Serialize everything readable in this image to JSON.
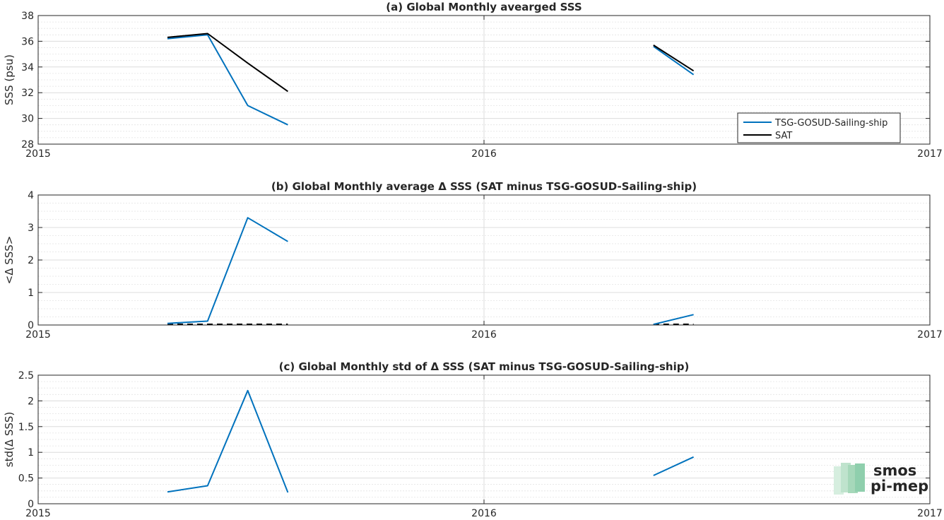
{
  "chart_data": [
    {
      "type": "line",
      "title": "(a) Global Monthly avearged SSS",
      "ylabel": "SSS (psu)",
      "xlim": [
        2015,
        2017
      ],
      "ylim": [
        28,
        38
      ],
      "xticks": [
        "2015",
        "2016",
        "2017"
      ],
      "yticks": [
        "28",
        "30",
        "32",
        "34",
        "36",
        "38"
      ],
      "grid": true,
      "legend_position": "bottom-right",
      "series": [
        {
          "name": "TSG-GOSUD-Sailing-ship",
          "color": "#0072bd",
          "segments": [
            {
              "x": [
                2015.29,
                2015.38,
                2015.47,
                2015.56
              ],
              "y": [
                36.2,
                36.5,
                31.0,
                29.5
              ]
            },
            {
              "x": [
                2016.38,
                2016.47
              ],
              "y": [
                35.6,
                33.4
              ]
            }
          ]
        },
        {
          "name": "SAT",
          "color": "#000000",
          "segments": [
            {
              "x": [
                2015.29,
                2015.38,
                2015.47,
                2015.56
              ],
              "y": [
                36.3,
                36.6,
                34.3,
                32.1
              ]
            },
            {
              "x": [
                2016.38,
                2016.47
              ],
              "y": [
                35.7,
                33.7
              ]
            }
          ]
        }
      ]
    },
    {
      "type": "line",
      "title": "(b) Global Monthly average Δ SSS (SAT minus TSG-GOSUD-Sailing-ship)",
      "ylabel": "<Δ SSS>",
      "xlim": [
        2015,
        2017
      ],
      "ylim": [
        0,
        4
      ],
      "xticks": [
        "2015",
        "2016",
        "2017"
      ],
      "yticks": [
        "0",
        "1",
        "2",
        "3",
        "4"
      ],
      "grid": true,
      "series": [
        {
          "color": "#0072bd",
          "segments": [
            {
              "x": [
                2015.29,
                2015.38,
                2015.47,
                2015.56
              ],
              "y": [
                0.05,
                0.12,
                3.3,
                2.57
              ]
            },
            {
              "x": [
                2016.38,
                2016.47
              ],
              "y": [
                0.02,
                0.32
              ]
            }
          ]
        }
      ],
      "zero_line_dashed": [
        {
          "x": [
            2015.29,
            2015.56
          ],
          "y": 0
        },
        {
          "x": [
            2016.38,
            2016.47
          ],
          "y": 0
        }
      ]
    },
    {
      "type": "line",
      "title": "(c) Global Monthly std of Δ SSS (SAT minus TSG-GOSUD-Sailing-ship)",
      "ylabel": "std(Δ SSS)",
      "xlim": [
        2015,
        2017
      ],
      "ylim": [
        0,
        2.5
      ],
      "xticks": [
        "2015",
        "2016",
        "2017"
      ],
      "yticks": [
        "0",
        "0.5",
        "1",
        "1.5",
        "2",
        "2.5"
      ],
      "grid": true,
      "series": [
        {
          "color": "#0072bd",
          "segments": [
            {
              "x": [
                2015.29,
                2015.38,
                2015.47,
                2015.56
              ],
              "y": [
                0.23,
                0.35,
                2.2,
                0.22
              ]
            },
            {
              "x": [
                2016.38,
                2016.47
              ],
              "y": [
                0.55,
                0.91
              ]
            }
          ]
        }
      ]
    }
  ],
  "logo": {
    "line1": "smos",
    "line2": "pi-mep"
  }
}
